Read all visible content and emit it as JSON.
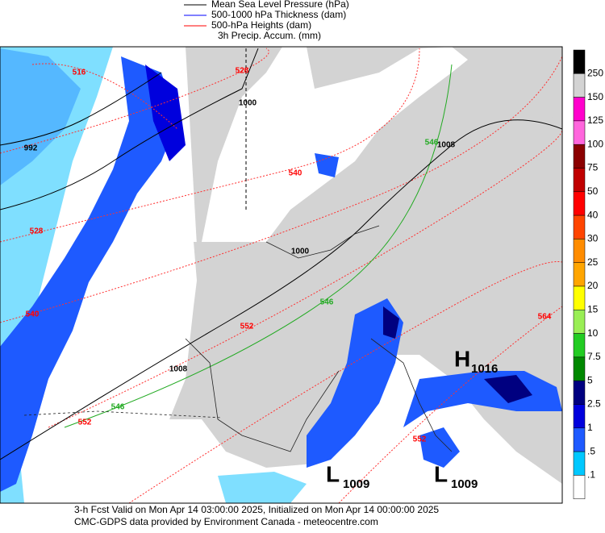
{
  "legend": {
    "items": [
      {
        "label": "Mean Sea Level Pressure (hPa)",
        "color": "#000000"
      },
      {
        "label": "500-1000 hPa Thickness (dam)",
        "color": "#0000ff"
      },
      {
        "label": "500-hPa Heights (dam)",
        "color": "#ff0000"
      },
      {
        "label": "3h Precip. Accum. (mm)",
        "color": null
      }
    ]
  },
  "colorbar": {
    "labels": [
      "250",
      "150",
      "125",
      "100",
      "75",
      "50",
      "40",
      "30",
      "25",
      "20",
      "15",
      "10",
      "7.5",
      "5",
      "2.5",
      "1",
      ".5",
      ".1"
    ],
    "colors": [
      "#000000",
      "#d3d3d3",
      "#ff00cc",
      "#ff66dd",
      "#8b0000",
      "#c00000",
      "#ff0000",
      "#ff4500",
      "#ff8c00",
      "#ffa500",
      "#ffff00",
      "#99ee55",
      "#22cc22",
      "#008800",
      "#000080",
      "#0000dd",
      "#1e5aff",
      "#00c8ff",
      "#ffffff"
    ]
  },
  "map": {
    "contour_labels": [
      {
        "text": "516",
        "color": "#ff0000"
      },
      {
        "text": "528",
        "color": "#ff0000"
      },
      {
        "text": "1000",
        "color": "#000000"
      },
      {
        "text": "992",
        "color": "#000000"
      },
      {
        "text": "528",
        "color": "#ff0000"
      },
      {
        "text": "540",
        "color": "#ff0000"
      },
      {
        "text": "540",
        "color": "#ff0000"
      },
      {
        "text": "1000",
        "color": "#000000"
      },
      {
        "text": "552",
        "color": "#ff0000"
      },
      {
        "text": "546",
        "color": "#22aa22"
      },
      {
        "text": "1008",
        "color": "#000000"
      },
      {
        "text": "546",
        "color": "#22aa22"
      },
      {
        "text": "552",
        "color": "#ff0000"
      },
      {
        "text": "1008",
        "color": "#000000"
      },
      {
        "text": "546",
        "color": "#22aa22"
      },
      {
        "text": "564",
        "color": "#ff0000"
      },
      {
        "text": "552",
        "color": "#ff0000"
      }
    ],
    "pressure_centers": [
      {
        "letter": "H",
        "value": "1016"
      },
      {
        "letter": "L",
        "value": "1009"
      },
      {
        "letter": "L",
        "value": "1009"
      }
    ]
  },
  "footer": {
    "lines": [
      "3-h Fcst Valid on Mon Apr 14 03:00:00 2025, Initialized on Mon Apr 14 00:00:00 2025",
      "CMC-GDPS data provided by Environment Canada - meteocentre.com"
    ]
  }
}
